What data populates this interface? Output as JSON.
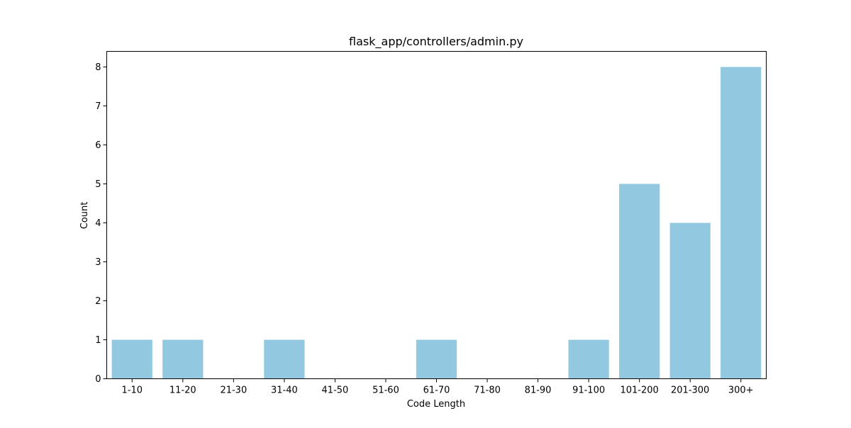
{
  "chart_data": {
    "type": "bar",
    "title": "flask_app/controllers/admin.py",
    "xlabel": "Code Length",
    "ylabel": "Count",
    "categories": [
      "1-10",
      "11-20",
      "21-30",
      "31-40",
      "41-50",
      "51-60",
      "61-70",
      "71-80",
      "81-90",
      "91-100",
      "101-200",
      "201-300",
      "300+"
    ],
    "values": [
      1,
      1,
      0,
      1,
      0,
      0,
      1,
      0,
      0,
      1,
      5,
      4,
      8
    ],
    "ylim": [
      0,
      8.4
    ],
    "yticks": [
      0,
      1,
      2,
      3,
      4,
      5,
      6,
      7,
      8
    ],
    "bar_color": "#92c9e0",
    "grid": false,
    "legend": "none"
  }
}
